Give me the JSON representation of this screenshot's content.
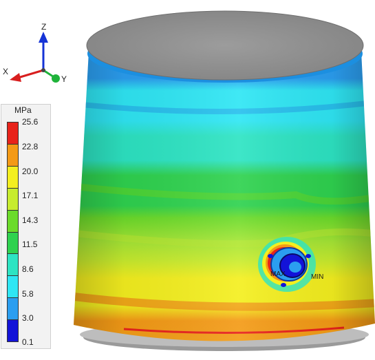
{
  "axes": {
    "z_label": "Z",
    "x_label": "X",
    "y_label": "Y",
    "z_color": "#1533d6",
    "x_color": "#d81e1e",
    "y_color": "#1fb33a"
  },
  "legend": {
    "unit": "MPa",
    "ticks": [
      "25.6",
      "22.8",
      "20.0",
      "17.1",
      "14.3",
      "11.5",
      "8.6",
      "5.8",
      "3.0",
      "0.1"
    ],
    "colors": [
      "#e8231b",
      "#f49a16",
      "#f4ef1f",
      "#c7ec2e",
      "#6bdb2b",
      "#2fd24f",
      "#2de4c3",
      "#2fe6f4",
      "#2b9ef0",
      "#1313d8"
    ]
  },
  "model": {
    "max_label": "MAX",
    "min_label": "MIN",
    "top_color": "#8f8f8f",
    "base_color": "#9a9a9a"
  }
}
